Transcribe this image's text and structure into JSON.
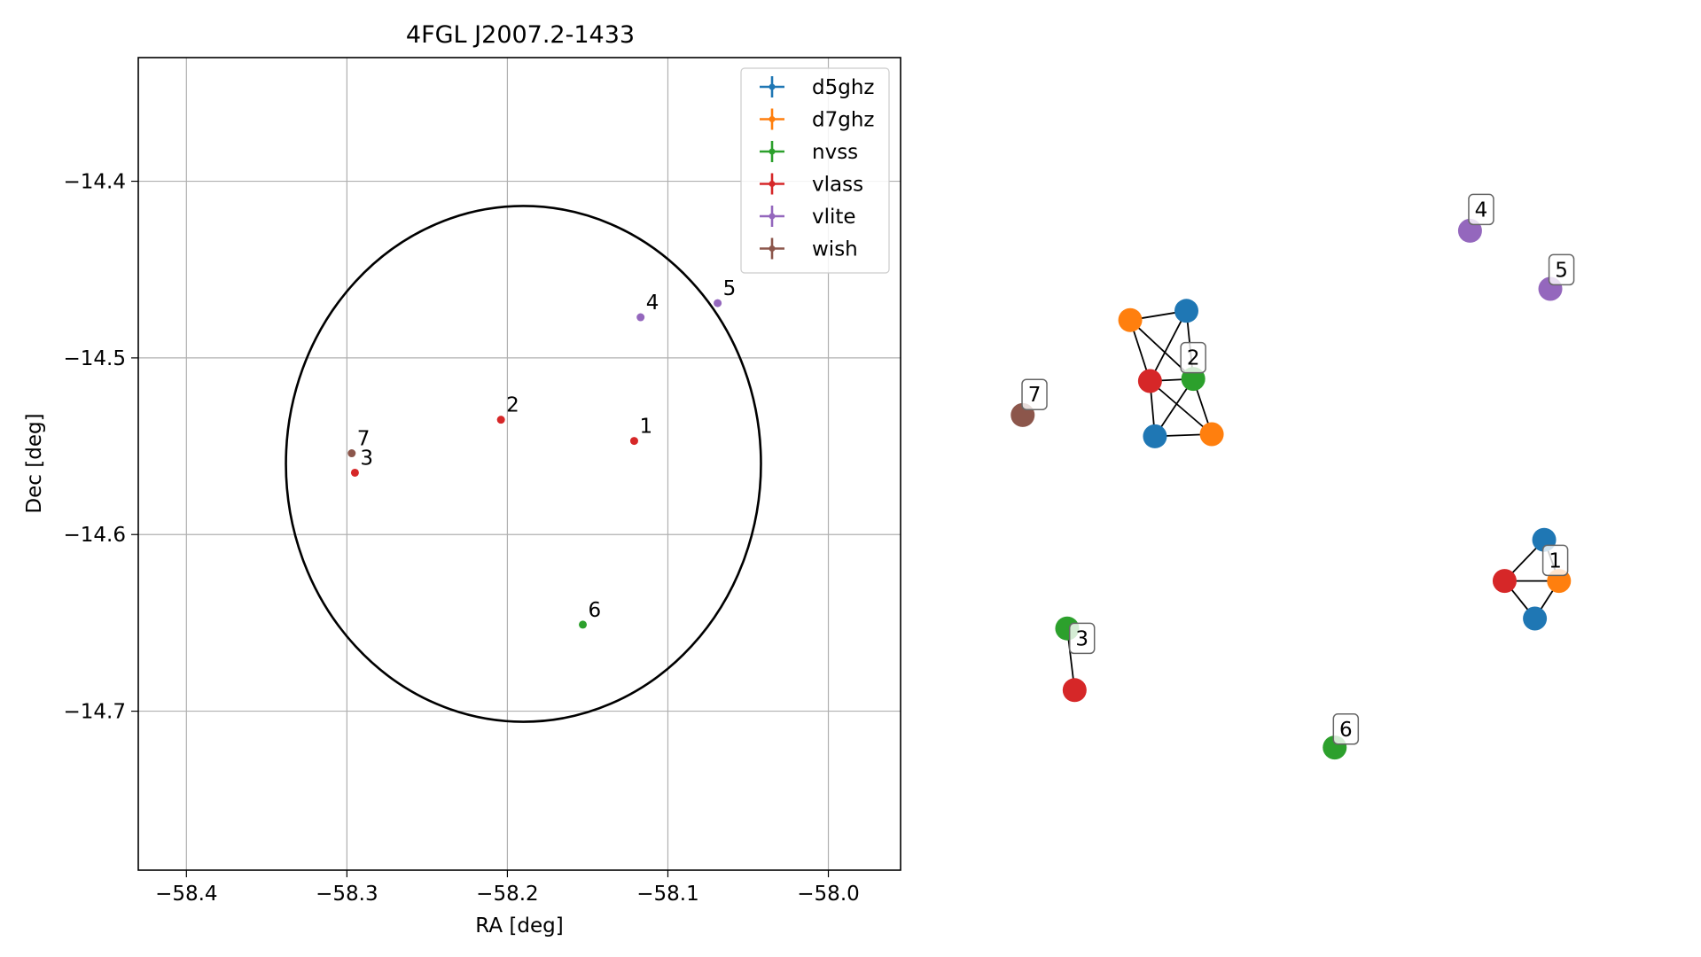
{
  "chart_data": [
    {
      "type": "scatter",
      "title": "4FGL J2007.2-1433",
      "xlabel": "RA [deg]",
      "ylabel": "Dec [deg]",
      "xlim": [
        -58.43,
        -57.955
      ],
      "ylim": [
        -14.79,
        -14.33
      ],
      "x_ticks": [
        -58.4,
        -58.3,
        -58.2,
        -58.1,
        -58.0
      ],
      "x_tick_labels": [
        "−58.4",
        "−58.3",
        "−58.2",
        "−58.1",
        "−58.0"
      ],
      "y_ticks": [
        -14.4,
        -14.5,
        -14.6,
        -14.7
      ],
      "y_tick_labels": [
        "−14.4",
        "−14.5",
        "−14.6",
        "−14.7"
      ],
      "grid": true,
      "legend_position": "top-right",
      "legend": [
        {
          "name": "d5ghz",
          "color": "#1f77b4"
        },
        {
          "name": "d7ghz",
          "color": "#ff7f0e"
        },
        {
          "name": "nvss",
          "color": "#2ca02c"
        },
        {
          "name": "vlass",
          "color": "#d62728"
        },
        {
          "name": "vlite",
          "color": "#9467bd"
        },
        {
          "name": "wish",
          "color": "#8c564b"
        }
      ],
      "ellipse": {
        "center_ra": -58.19,
        "center_dec": -14.56,
        "semi_ra": 0.148,
        "semi_dec": 0.146,
        "color": "#000000"
      },
      "points": [
        {
          "label": "1",
          "ra": -58.121,
          "dec": -14.547,
          "color": "#d62728"
        },
        {
          "label": "2",
          "ra": -58.204,
          "dec": -14.535,
          "color": "#d62728"
        },
        {
          "label": "3",
          "ra": -58.295,
          "dec": -14.565,
          "color": "#d62728"
        },
        {
          "label": "4",
          "ra": -58.117,
          "dec": -14.477,
          "color": "#9467bd"
        },
        {
          "label": "5",
          "ra": -58.069,
          "dec": -14.469,
          "color": "#9467bd"
        },
        {
          "label": "6",
          "ra": -58.153,
          "dec": -14.651,
          "color": "#2ca02c"
        },
        {
          "label": "7",
          "ra": -58.297,
          "dec": -14.554,
          "color": "#8c564b"
        }
      ]
    },
    {
      "type": "network",
      "description": "match graph of catalog detections",
      "xlim": [
        0,
        1
      ],
      "ylim": [
        0,
        1
      ],
      "nodes": [
        {
          "id": "a1",
          "x": 0.211,
          "y": 0.786,
          "color": "#ff7f0e"
        },
        {
          "id": "a2",
          "x": 0.302,
          "y": 0.799,
          "color": "#1f77b4"
        },
        {
          "id": "a3",
          "x": 0.243,
          "y": 0.7,
          "color": "#d62728"
        },
        {
          "id": "a4",
          "x": 0.313,
          "y": 0.703,
          "color": "#2ca02c"
        },
        {
          "id": "a5",
          "x": 0.251,
          "y": 0.622,
          "color": "#1f77b4"
        },
        {
          "id": "a6",
          "x": 0.343,
          "y": 0.625,
          "color": "#ff7f0e"
        },
        {
          "id": "b1",
          "x": 0.881,
          "y": 0.476,
          "color": "#1f77b4"
        },
        {
          "id": "b2",
          "x": 0.817,
          "y": 0.418,
          "color": "#d62728"
        },
        {
          "id": "b3",
          "x": 0.905,
          "y": 0.418,
          "color": "#ff7f0e"
        },
        {
          "id": "b4",
          "x": 0.866,
          "y": 0.365,
          "color": "#1f77b4"
        },
        {
          "id": "c1",
          "x": 0.109,
          "y": 0.351,
          "color": "#2ca02c"
        },
        {
          "id": "c2",
          "x": 0.121,
          "y": 0.264,
          "color": "#d62728"
        },
        {
          "id": "d1",
          "x": 0.761,
          "y": 0.912,
          "color": "#9467bd"
        },
        {
          "id": "e1",
          "x": 0.891,
          "y": 0.83,
          "color": "#9467bd"
        },
        {
          "id": "f1",
          "x": 0.542,
          "y": 0.183,
          "color": "#2ca02c"
        },
        {
          "id": "g1",
          "x": 0.037,
          "y": 0.652,
          "color": "#8c564b"
        }
      ],
      "edges": [
        [
          "a1",
          "a2"
        ],
        [
          "a1",
          "a3"
        ],
        [
          "a1",
          "a4"
        ],
        [
          "a2",
          "a3"
        ],
        [
          "a2",
          "a4"
        ],
        [
          "a3",
          "a4"
        ],
        [
          "a3",
          "a5"
        ],
        [
          "a3",
          "a6"
        ],
        [
          "a4",
          "a5"
        ],
        [
          "a4",
          "a6"
        ],
        [
          "a5",
          "a6"
        ],
        [
          "b1",
          "b2"
        ],
        [
          "b1",
          "b3"
        ],
        [
          "b2",
          "b3"
        ],
        [
          "b2",
          "b4"
        ],
        [
          "b3",
          "b4"
        ],
        [
          "c1",
          "c2"
        ]
      ],
      "labels": [
        {
          "text": "2",
          "x": 0.313,
          "y": 0.733
        },
        {
          "text": "1",
          "x": 0.899,
          "y": 0.447
        },
        {
          "text": "3",
          "x": 0.133,
          "y": 0.337
        },
        {
          "text": "4",
          "x": 0.779,
          "y": 0.942
        },
        {
          "text": "5",
          "x": 0.909,
          "y": 0.857
        },
        {
          "text": "6",
          "x": 0.56,
          "y": 0.209
        },
        {
          "text": "7",
          "x": 0.056,
          "y": 0.681
        }
      ]
    }
  ]
}
